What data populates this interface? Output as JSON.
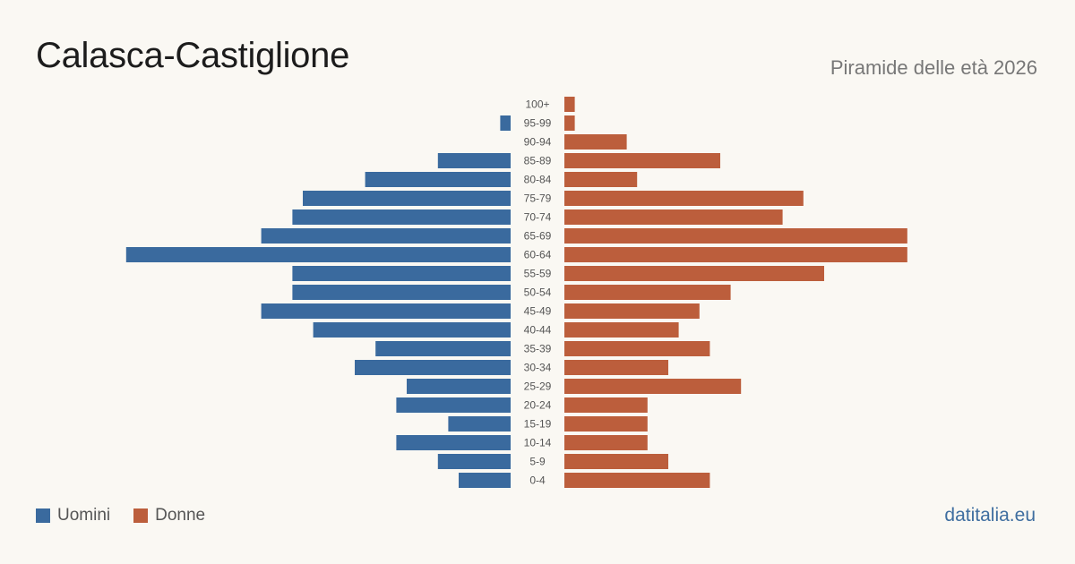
{
  "title": "Calasca-Castiglione",
  "subtitle": "Piramide delle età 2026",
  "brand": "datitalia.eu",
  "colors": {
    "men": "#3a6a9e",
    "women": "#bc5e3c",
    "age_label": "#555555"
  },
  "chart_data": {
    "type": "bar",
    "orientation": "horizontal-pyramid",
    "categories": [
      "100+",
      "95-99",
      "90-94",
      "85-89",
      "80-84",
      "75-79",
      "70-74",
      "65-69",
      "60-64",
      "55-59",
      "50-54",
      "45-49",
      "40-44",
      "35-39",
      "30-34",
      "25-29",
      "20-24",
      "15-19",
      "10-14",
      "5-9",
      "0-4"
    ],
    "series": [
      {
        "name": "Uomini",
        "values": [
          0,
          1,
          0,
          7,
          14,
          20,
          21,
          24,
          37,
          21,
          21,
          24,
          19,
          13,
          15,
          10,
          11,
          6,
          11,
          7,
          5
        ]
      },
      {
        "name": "Donne",
        "values": [
          1,
          1,
          6,
          15,
          7,
          23,
          21,
          33,
          33,
          25,
          16,
          13,
          11,
          14,
          10,
          17,
          8,
          8,
          8,
          10,
          14
        ]
      }
    ],
    "legend_position": "bottom-left"
  }
}
